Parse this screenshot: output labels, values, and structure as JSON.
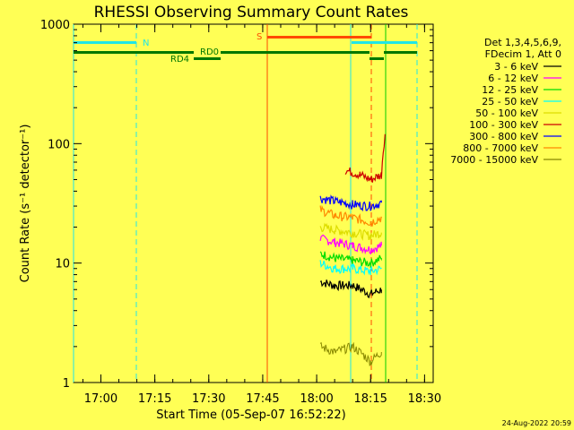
{
  "title": "RHESSI Observing Summary Count Rates",
  "footer_date": "24-Aug-2022 20:59",
  "colors": {
    "background": "#ffff55",
    "cyan": "#22e6e6",
    "orange_red": "#ff4a00",
    "green_bar": "#007700"
  },
  "chart_data": {
    "type": "line",
    "title": "RHESSI Observing Summary Count Rates",
    "xlabel": "Start Time (05-Sep-07 16:52:22)",
    "ylabel": "Count Rate (s⁻¹ detector⁻¹)",
    "y_scale": "log",
    "ylim": [
      1,
      1000
    ],
    "xlim": [
      "16:52",
      "18:32"
    ],
    "x_ticks": [
      "17:00",
      "17:15",
      "17:30",
      "17:45",
      "18:00",
      "18:15",
      "18:30"
    ],
    "y_ticks": [
      "1",
      "10",
      "100",
      "1000"
    ],
    "grid": false,
    "legend_position": "right",
    "legend_header": [
      "Det 1,3,4,5,6,9,",
      "FDecim 1, Att 0"
    ],
    "series": [
      {
        "name": "3 - 6 keV",
        "color": "#000000",
        "x": [
          "18:01",
          "18:05",
          "18:10",
          "18:15",
          "18:18"
        ],
        "values": [
          7,
          6.5,
          6.5,
          5.5,
          6
        ]
      },
      {
        "name": "6 - 12 keV",
        "color": "#ff00ff",
        "x": [
          "18:01",
          "18:05",
          "18:10",
          "18:15",
          "18:18"
        ],
        "values": [
          16,
          15,
          14,
          13,
          14
        ]
      },
      {
        "name": "12 - 25 keV",
        "color": "#00dd00",
        "x": [
          "18:01",
          "18:05",
          "18:10",
          "18:15",
          "18:18"
        ],
        "values": [
          12,
          11,
          10.5,
          10,
          11
        ]
      },
      {
        "name": "25 - 50 keV",
        "color": "#00ffff",
        "x": [
          "18:01",
          "18:05",
          "18:10",
          "18:15",
          "18:18"
        ],
        "values": [
          10,
          9,
          9,
          8.5,
          9
        ]
      },
      {
        "name": "50 - 100 keV",
        "color": "#dddd00",
        "x": [
          "18:01",
          "18:05",
          "18:10",
          "18:15",
          "18:18"
        ],
        "values": [
          20,
          19,
          18,
          17,
          18
        ]
      },
      {
        "name": "100 - 300 keV",
        "color": "#cc0000",
        "x": [
          "18:08",
          "18:12",
          "18:15",
          "18:18",
          "18:19"
        ],
        "values": [
          60,
          55,
          50,
          55,
          120
        ]
      },
      {
        "name": "300 - 800 keV",
        "color": "#0000ff",
        "x": [
          "18:01",
          "18:05",
          "18:10",
          "18:15",
          "18:18"
        ],
        "values": [
          35,
          33,
          31,
          30,
          32
        ]
      },
      {
        "name": "800 - 7000 keV",
        "color": "#ff8800",
        "x": [
          "18:01",
          "18:05",
          "18:10",
          "18:15",
          "18:18"
        ],
        "values": [
          28,
          25,
          24,
          22,
          24
        ]
      },
      {
        "name": "7000 - 15000 keV",
        "color": "#888800",
        "x": [
          "18:01",
          "18:05",
          "18:10",
          "18:15",
          "18:18"
        ],
        "values": [
          2,
          1.8,
          2,
          1.5,
          1.8
        ]
      }
    ],
    "annotations": [
      {
        "label": "N",
        "color": "#22e6e6"
      },
      {
        "label": "S",
        "color": "#ff4a00"
      },
      {
        "label": "RD0",
        "color": "#007700"
      },
      {
        "label": "RD4",
        "color": "#007700"
      }
    ]
  }
}
